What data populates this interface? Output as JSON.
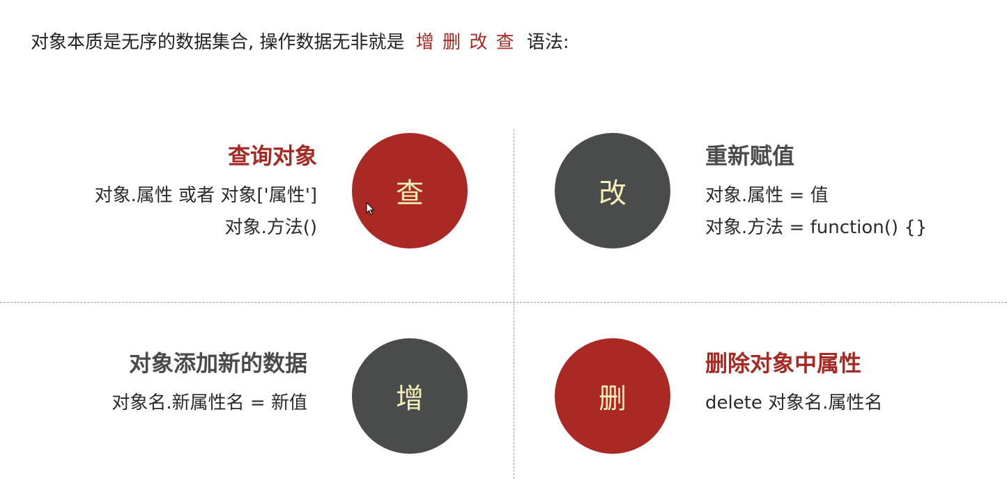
{
  "intro": {
    "prefix": "对象本质是无序的数据集合, 操作数据无非就是",
    "highlight": "增 删 改 查",
    "suffix": "语法:"
  },
  "quadrants": {
    "query": {
      "circle_label": "查",
      "title": "查询对象",
      "lines": [
        "对象.属性 或者 对象['属性']",
        "对象.方法()"
      ]
    },
    "modify": {
      "circle_label": "改",
      "title": "重新赋值",
      "lines": [
        "对象.属性 =  值",
        "对象.方法 = function() {}"
      ]
    },
    "add": {
      "circle_label": "增",
      "title": "对象添加新的数据",
      "lines": [
        "对象名.新属性名 = 新值"
      ]
    },
    "delete": {
      "circle_label": "删",
      "title": "删除对象中属性",
      "lines": [
        "delete 对象名.属性名"
      ]
    }
  },
  "colors": {
    "accent_red": "#ab2924",
    "dark_gray": "#4a4c4b",
    "circle_text": "#f4f0b8"
  }
}
